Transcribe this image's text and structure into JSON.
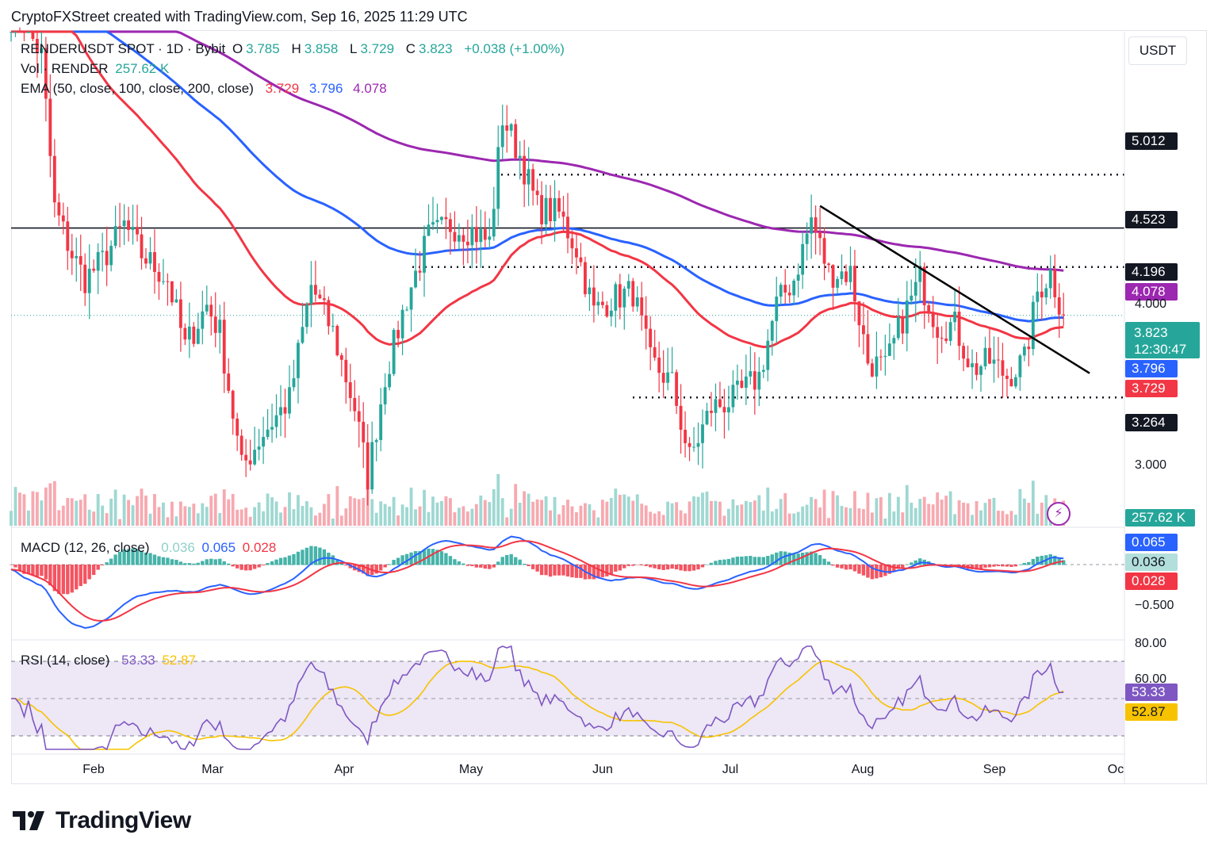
{
  "header": {
    "text": "CryptoFXStreet created with TradingView.com, Sep 16, 2025 11:29 UTC"
  },
  "currency": "USDT",
  "legend": {
    "symbol": "RENDERUSDT SPOT · 1D · Bybit",
    "o_label": "O",
    "o": "3.785",
    "h_label": "H",
    "h": "3.858",
    "l_label": "L",
    "l": "3.729",
    "c_label": "C",
    "c": "3.823",
    "change": "+0.038 (+1.00%)",
    "vol_label": "Vol · RENDER",
    "vol": "257.62 K",
    "ema_label": "EMA (50, close, 100, close, 200, close)",
    "ema50": "3.729",
    "ema100": "3.796",
    "ema200": "4.078",
    "macd_label": "MACD (12, 26, close)",
    "macd_hist": "0.036",
    "macd_line": "0.065",
    "macd_signal": "0.028",
    "rsi_label": "RSI (14, close)",
    "rsi": "53.33",
    "rsi_ma": "52.87"
  },
  "price_tags": {
    "level_5012": "5.012",
    "level_4523": "4.523",
    "level_4196": "4.196",
    "ema200": "4.078",
    "price": "3.823",
    "countdown": "12:30:47",
    "ema100": "3.796",
    "ema50": "3.729",
    "level_3264": "3.264",
    "volume": "257.62 K",
    "macd_line": "0.065",
    "macd_hist": "0.036",
    "macd_signal": "0.028",
    "rsi": "53.33",
    "rsi_ma": "52.87"
  },
  "axis": {
    "price_ticks": [
      "4.000",
      "3.000"
    ],
    "macd_ticks": [
      "−0.500"
    ],
    "rsi_ticks": [
      "80.00",
      "60.00"
    ],
    "months": [
      "Feb",
      "Mar",
      "Apr",
      "May",
      "Jun",
      "Jul",
      "Aug",
      "Sep",
      "Oc"
    ]
  },
  "brand": {
    "logo_text": "TradingView"
  },
  "colors": {
    "up": "#26a69a",
    "down": "#f23645",
    "ema50": "#f23645",
    "ema100": "#2962ff",
    "ema200": "#9c27b0",
    "rsi": "#7e57c2",
    "rsi_ma": "#f7c300",
    "rsi_band": "#ede7f6"
  },
  "chart_data": {
    "type": "candlestick",
    "title": "RENDERUSDT SPOT · 1D · Bybit",
    "scale": "log",
    "ylim": [
      2.55,
      6.6
    ],
    "horizontal_levels": [
      5.012,
      4.523,
      4.196,
      3.264
    ],
    "trendline": {
      "from": [
        "2025-07-22",
        4.72
      ],
      "to": [
        "2025-09-22",
        3.42
      ]
    },
    "x_range": [
      "2025-01-17",
      "2025-09-30"
    ],
    "series_ohlc_anchors": [
      {
        "date": "2025-01-17",
        "close": 6.9
      },
      {
        "date": "2025-01-20",
        "close": 6.7
      },
      {
        "date": "2025-01-24",
        "close": 6.3
      },
      {
        "date": "2025-01-27",
        "close": 4.7
      },
      {
        "date": "2025-01-31",
        "close": 4.3
      },
      {
        "date": "2025-02-03",
        "close": 4.1
      },
      {
        "date": "2025-02-07",
        "close": 4.25
      },
      {
        "date": "2025-02-12",
        "close": 4.55
      },
      {
        "date": "2025-02-16",
        "close": 4.3
      },
      {
        "date": "2025-02-22",
        "close": 4.1
      },
      {
        "date": "2025-02-26",
        "close": 3.6
      },
      {
        "date": "2025-03-03",
        "close": 3.9
      },
      {
        "date": "2025-03-06",
        "close": 3.7
      },
      {
        "date": "2025-03-11",
        "close": 2.85
      },
      {
        "date": "2025-03-16",
        "close": 3.05
      },
      {
        "date": "2025-03-22",
        "close": 3.25
      },
      {
        "date": "2025-03-27",
        "close": 4.05
      },
      {
        "date": "2025-04-01",
        "close": 3.7
      },
      {
        "date": "2025-04-06",
        "close": 3.2
      },
      {
        "date": "2025-04-09",
        "close": 2.8
      },
      {
        "date": "2025-04-13",
        "close": 3.4
      },
      {
        "date": "2025-04-18",
        "close": 3.95
      },
      {
        "date": "2025-04-23",
        "close": 4.45
      },
      {
        "date": "2025-04-28",
        "close": 4.55
      },
      {
        "date": "2025-05-03",
        "close": 4.5
      },
      {
        "date": "2025-05-07",
        "close": 4.4
      },
      {
        "date": "2025-05-10",
        "close": 5.6
      },
      {
        "date": "2025-05-14",
        "close": 5.2
      },
      {
        "date": "2025-05-18",
        "close": 4.7
      },
      {
        "date": "2025-05-23",
        "close": 4.65
      },
      {
        "date": "2025-05-27",
        "close": 4.35
      },
      {
        "date": "2025-05-31",
        "close": 3.85
      },
      {
        "date": "2025-06-04",
        "close": 3.95
      },
      {
        "date": "2025-06-09",
        "close": 4.0
      },
      {
        "date": "2025-06-13",
        "close": 3.5
      },
      {
        "date": "2025-06-18",
        "close": 3.35
      },
      {
        "date": "2025-06-22",
        "close": 2.9
      },
      {
        "date": "2025-06-27",
        "close": 3.2
      },
      {
        "date": "2025-07-02",
        "close": 3.25
      },
      {
        "date": "2025-07-08",
        "close": 3.4
      },
      {
        "date": "2025-07-12",
        "close": 3.9
      },
      {
        "date": "2025-07-16",
        "close": 4.1
      },
      {
        "date": "2025-07-20",
        "close": 4.6
      },
      {
        "date": "2025-07-24",
        "close": 4.15
      },
      {
        "date": "2025-07-29",
        "close": 4.15
      },
      {
        "date": "2025-08-02",
        "close": 3.5
      },
      {
        "date": "2025-08-06",
        "close": 3.45
      },
      {
        "date": "2025-08-10",
        "close": 3.8
      },
      {
        "date": "2025-08-14",
        "close": 4.1
      },
      {
        "date": "2025-08-18",
        "close": 3.75
      },
      {
        "date": "2025-08-22",
        "close": 3.75
      },
      {
        "date": "2025-08-26",
        "close": 3.45
      },
      {
        "date": "2025-08-30",
        "close": 3.5
      },
      {
        "date": "2025-09-03",
        "close": 3.4
      },
      {
        "date": "2025-09-07",
        "close": 3.5
      },
      {
        "date": "2025-09-10",
        "close": 4.0
      },
      {
        "date": "2025-09-13",
        "close": 4.15
      },
      {
        "date": "2025-09-16",
        "close": 3.823
      }
    ]
  }
}
